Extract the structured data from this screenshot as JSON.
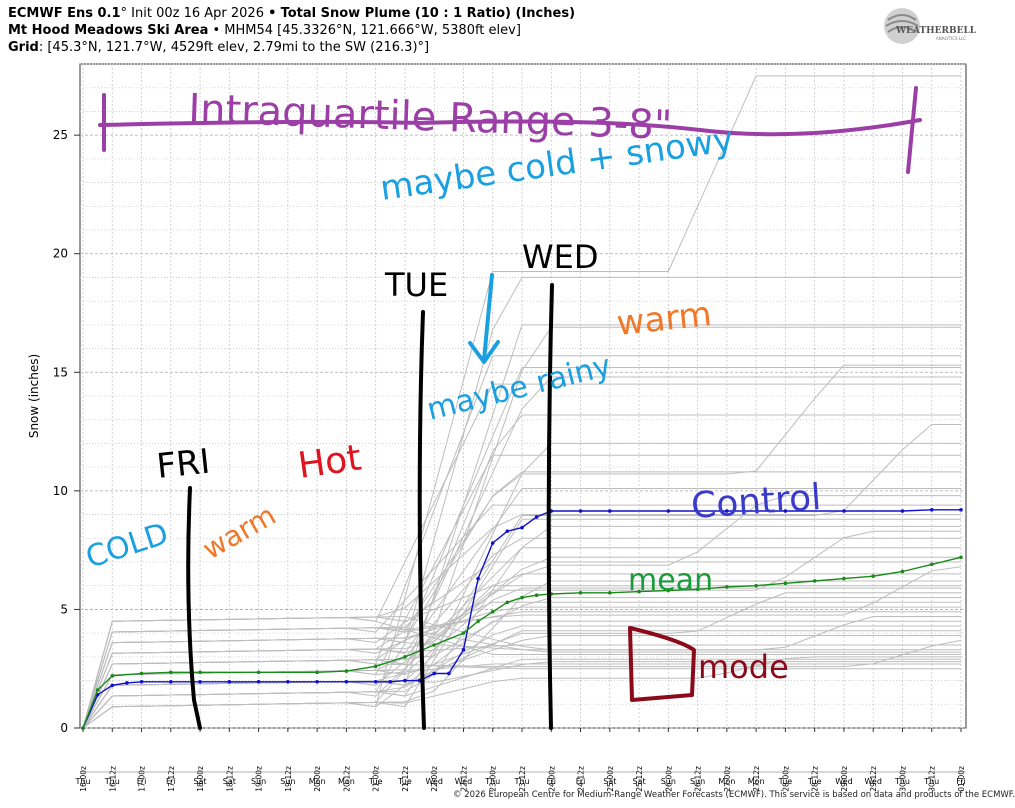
{
  "header": {
    "model": "ECMWF Ens 0.1",
    "deg": "°",
    "init": "Init 00z 16 Apr 2026",
    "sep": "•",
    "product": "Total Snow Plume (10 : 1 Ratio) (Inches)",
    "location_name": "Mt Hood Meadows Ski Area",
    "location_detail": "MHM54 [45.3326°N, 121.666°W, 5380ft elev]",
    "grid_label": "Grid",
    "grid_detail": ": [45.3°N, 121.7°W, 4529ft elev, 2.79mi to the SW (216.3)°]"
  },
  "logo": {
    "text": "WEATHERBELL",
    "sub": "ANALYTICS LLC"
  },
  "footer": "© 2026 European Centre for Medium-Range Weather Forecasts (ECMWF). This service is based on data and products of the ECMWF.",
  "colors": {
    "member": "#bdbdbd",
    "control": "#1010cc",
    "mean": "#1a8a1a",
    "grid": "#c8c8c8"
  },
  "chart_data": {
    "type": "line",
    "ylabel": "Snow (inches)",
    "ylim": [
      0,
      28
    ],
    "yticks": [
      0,
      5,
      10,
      15,
      20,
      25
    ],
    "grid": true,
    "x_time_labels": [
      "16-00z",
      "16-12z",
      "17-00z",
      "17-12z",
      "18-00z",
      "18-12z",
      "19-00z",
      "19-12z",
      "20-00z",
      "20-12z",
      "21-00z",
      "21-12z",
      "22-00z",
      "22-12z",
      "23-00z",
      "23-12z",
      "24-00z",
      "24-12z",
      "25-00z",
      "25-12z",
      "26-00z",
      "26-12z",
      "27-00z",
      "27-12z",
      "28-00z",
      "28-12z",
      "29-00z",
      "29-12z",
      "30-00z",
      "30-12z",
      "01-00z"
    ],
    "x_day_labels": [
      "Thu",
      "Thu",
      "Fri",
      "Fri",
      "Sat",
      "Sat",
      "Sun",
      "Sun",
      "Mon",
      "Mon",
      "Tue",
      "Tue",
      "Wed",
      "Wed",
      "Thu",
      "Thu",
      "Fri",
      "Fri",
      "Sat",
      "Sat",
      "Sun",
      "Sun",
      "Mon",
      "Mon",
      "Tue",
      "Tue",
      "Wed",
      "Wed",
      "Thu",
      "Thu",
      "Fri"
    ],
    "x_range_hours": [
      0,
      360
    ],
    "series": [
      {
        "role": "control",
        "x": [
          0,
          6,
          12,
          18,
          24,
          36,
          48,
          60,
          72,
          84,
          96,
          108,
          120,
          126,
          132,
          138,
          144,
          150,
          156,
          162,
          168,
          174,
          180,
          186,
          192,
          204,
          216,
          240,
          264,
          288,
          312,
          336,
          348,
          360
        ],
        "y": [
          0,
          1.4,
          1.8,
          1.9,
          1.95,
          1.95,
          1.95,
          1.95,
          1.95,
          1.95,
          1.95,
          1.95,
          1.95,
          1.95,
          2.0,
          2.0,
          2.3,
          2.3,
          3.3,
          6.3,
          7.8,
          8.3,
          8.45,
          8.9,
          9.15,
          9.15,
          9.15,
          9.15,
          9.15,
          9.15,
          9.15,
          9.15,
          9.2,
          9.2
        ]
      },
      {
        "role": "mean",
        "x": [
          0,
          6,
          12,
          24,
          36,
          48,
          72,
          96,
          108,
          120,
          132,
          144,
          156,
          162,
          168,
          174,
          180,
          186,
          192,
          204,
          216,
          228,
          240,
          252,
          264,
          276,
          288,
          300,
          312,
          324,
          336,
          348,
          360
        ],
        "y": [
          0,
          1.6,
          2.2,
          2.3,
          2.35,
          2.35,
          2.35,
          2.35,
          2.4,
          2.6,
          3.0,
          3.5,
          4.0,
          4.5,
          4.9,
          5.3,
          5.5,
          5.6,
          5.65,
          5.7,
          5.7,
          5.75,
          5.8,
          5.85,
          5.95,
          6.0,
          6.1,
          6.2,
          6.3,
          6.4,
          6.6,
          6.9,
          7.2
        ]
      }
    ],
    "member_finals": [
      27.5,
      19,
      17,
      16.9,
      15.7,
      15.3,
      15.2,
      14.8,
      14.5,
      13.2,
      12.8,
      12,
      11.5,
      10.8,
      10.1,
      9.8,
      9.4,
      9,
      8.8,
      8.5,
      8.3,
      8,
      7.6,
      7.2,
      7,
      6.8,
      6.5,
      6.2,
      6,
      5.9,
      5.7,
      5.5,
      5.3,
      5.1,
      4.9,
      4.7,
      4.5,
      4.3,
      4.1,
      3.9,
      3.7,
      3.5,
      3.3,
      3.2,
      3.1,
      3,
      2.9,
      2.8,
      2.7,
      2.5
    ],
    "annotations": [
      {
        "text": "Intraquartile Range 3-8\"",
        "color": "#9b3fa6"
      },
      {
        "text": "maybe cold + snowy",
        "color": "#1aa0e0"
      },
      {
        "text": "WED",
        "color": "#000000"
      },
      {
        "text": "TUE",
        "color": "#000000"
      },
      {
        "text": "FRI",
        "color": "#000000"
      },
      {
        "text": "Hot",
        "color": "#e0141e"
      },
      {
        "text": "warm",
        "color": "#f07828"
      },
      {
        "text": "warm",
        "color": "#f07828"
      },
      {
        "text": "COLD",
        "color": "#1aa0e0"
      },
      {
        "text": "maybe rainy",
        "color": "#1aa0e0"
      },
      {
        "text": "Control",
        "color": "#3a3acc"
      },
      {
        "text": "mean",
        "color": "#1a9a3a"
      },
      {
        "text": "mode",
        "color": "#8a0a1a"
      }
    ]
  }
}
